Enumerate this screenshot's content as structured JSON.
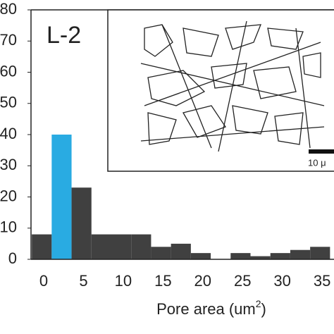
{
  "chart_data": {
    "type": "histogram",
    "panel_label": "L-2",
    "xlabel": "Pore area (um",
    "xlabel_sup": "2",
    "xlabel_end": ")",
    "bins": [
      -1.5,
      1,
      3.5,
      6,
      8.5,
      11,
      13.5,
      16,
      18.5,
      21,
      23.5,
      26,
      28.5,
      31,
      33.5,
      36
    ],
    "values": [
      8,
      40,
      23,
      8,
      8,
      8,
      4,
      5,
      2,
      0,
      2,
      1,
      2,
      3,
      4
    ],
    "colors": [
      "#404040",
      "#29abe2",
      "#404040",
      "#404040",
      "#404040",
      "#404040",
      "#404040",
      "#404040",
      "#404040",
      "#404040",
      "#404040",
      "#404040",
      "#404040",
      "#404040",
      "#404040"
    ],
    "xlim": [
      -1.6,
      36.5
    ],
    "xticks": [
      0,
      5,
      10,
      15,
      20,
      25,
      30,
      35
    ],
    "ylim": [
      0,
      80
    ],
    "yticks": [
      0,
      10,
      20,
      30,
      40,
      50,
      60,
      70,
      80
    ],
    "inset_scale_label": "10 μ"
  }
}
